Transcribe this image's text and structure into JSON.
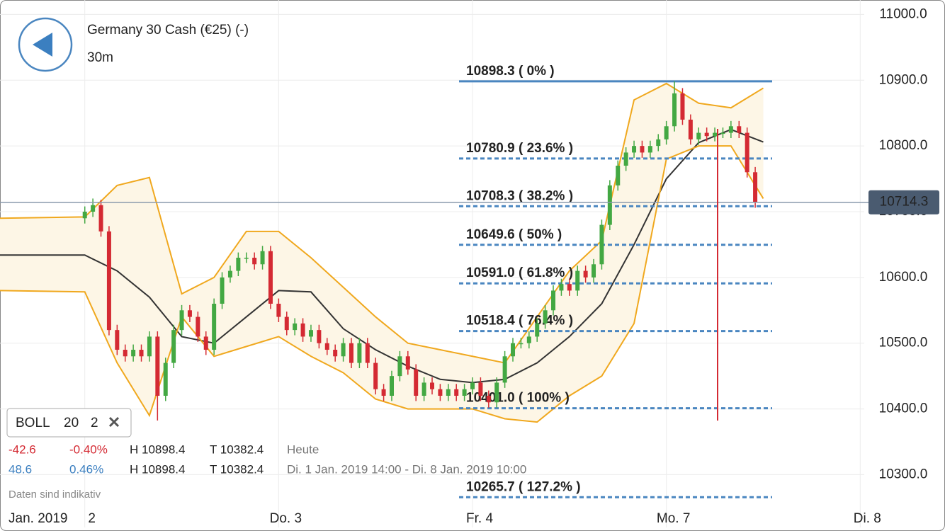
{
  "chart_data": {
    "type": "candlestick",
    "title": "Germany 30 Cash (€25) (-)",
    "subtitle": "30m",
    "x_period_label": "Jan. 2019",
    "xlim": [
      -10.5,
      96.5
    ],
    "xticks": [
      {
        "value": 0,
        "label": "2"
      },
      {
        "value": 24,
        "label": "Do. 3"
      },
      {
        "value": 48,
        "label": "Fr. 4"
      },
      {
        "value": 72,
        "label": "Mo. 7"
      },
      {
        "value": 96,
        "label": "Di. 8"
      }
    ],
    "ylim": [
      10252,
      11022
    ],
    "yticks": [
      {
        "value": 10300,
        "label": "10300.0"
      },
      {
        "value": 10400,
        "label": "10400.0"
      },
      {
        "value": 10500,
        "label": "10500.0"
      },
      {
        "value": 10600,
        "label": "10600.0"
      },
      {
        "value": 10700,
        "label": "10700.0"
      },
      {
        "value": 10800,
        "label": "10800.0"
      },
      {
        "value": 10900,
        "label": "10900.0"
      },
      {
        "value": 11000,
        "label": "11000.0"
      }
    ],
    "grid": true,
    "up_color": "#43a843",
    "down_color": "#d42a33",
    "x": [
      0,
      1,
      2,
      3,
      4,
      5,
      6,
      7,
      8,
      9,
      10,
      11,
      12,
      13,
      14,
      15,
      16,
      17,
      18,
      19,
      20,
      21,
      22,
      23,
      24,
      25,
      26,
      27,
      28,
      29,
      30,
      31,
      32,
      33,
      34,
      35,
      36,
      37,
      38,
      39,
      40,
      41,
      42,
      43,
      44,
      45,
      46,
      47,
      48,
      49,
      50,
      51,
      52,
      53,
      54,
      55,
      56,
      57,
      58,
      59,
      60,
      61,
      62,
      63,
      64,
      65,
      66,
      67,
      68,
      69,
      70,
      71,
      72,
      73,
      74,
      75,
      76,
      77,
      78,
      79,
      80,
      81,
      82,
      83
    ],
    "open": [
      10690,
      10700,
      10710,
      10670,
      10520,
      10490,
      10480,
      10490,
      10480,
      10510,
      10420,
      10470,
      10520,
      10550,
      10540,
      10510,
      10490,
      10560,
      10600,
      10610,
      10630,
      10630,
      10620,
      10640,
      10560,
      10540,
      10520,
      10530,
      10510,
      10520,
      10500,
      10490,
      10480,
      10500,
      10470,
      10500,
      10470,
      10430,
      10420,
      10450,
      10480,
      10460,
      10420,
      10440,
      10430,
      10420,
      10430,
      10420,
      10430,
      10440,
      10420,
      10410,
      10440,
      10480,
      10500,
      10500,
      10510,
      10530,
      10550,
      10580,
      10590,
      10580,
      10610,
      10600,
      10620,
      10680,
      10740,
      10770,
      10790,
      10800,
      10790,
      10800,
      10810,
      10830,
      10880,
      10840,
      10810,
      10820,
      10815,
      10820,
      10820,
      10830,
      10820,
      10760
    ],
    "high": [
      10708,
      10720,
      10718,
      10678,
      10528,
      10498,
      10498,
      10498,
      10518,
      10518,
      10478,
      10528,
      10558,
      10558,
      10548,
      10518,
      10568,
      10608,
      10618,
      10638,
      10638,
      10638,
      10648,
      10648,
      10568,
      10548,
      10538,
      10538,
      10528,
      10528,
      10508,
      10498,
      10508,
      10508,
      10508,
      10508,
      10478,
      10438,
      10458,
      10488,
      10488,
      10468,
      10448,
      10448,
      10438,
      10438,
      10438,
      10438,
      10448,
      10448,
      10428,
      10448,
      10488,
      10508,
      10508,
      10518,
      10538,
      10558,
      10588,
      10598,
      10598,
      10618,
      10618,
      10628,
      10688,
      10748,
      10778,
      10798,
      10808,
      10808,
      10808,
      10818,
      10838,
      10898.4,
      10888,
      10848,
      10828,
      10828,
      10828,
      10828,
      10838,
      10838,
      10828,
      10768
    ],
    "low": [
      10682,
      10692,
      10662,
      10512,
      10482,
      10472,
      10472,
      10472,
      10472,
      10382.4,
      10412,
      10462,
      10512,
      10532,
      10502,
      10482,
      10482,
      10552,
      10592,
      10602,
      10622,
      10612,
      10612,
      10552,
      10532,
      10512,
      10512,
      10502,
      10502,
      10492,
      10482,
      10472,
      10472,
      10462,
      10462,
      10462,
      10422,
      10412,
      10412,
      10442,
      10452,
      10412,
      10412,
      10422,
      10412,
      10412,
      10412,
      10412,
      10422,
      10412,
      10402,
      10402,
      10432,
      10472,
      10492,
      10492,
      10502,
      10522,
      10542,
      10572,
      10572,
      10572,
      10592,
      10592,
      10612,
      10672,
      10732,
      10762,
      10782,
      10782,
      10782,
      10792,
      10802,
      10822,
      10832,
      10802,
      10802,
      10807,
      10807,
      10812,
      10812,
      10812,
      10752,
      10706
    ],
    "close": [
      10700,
      10710,
      10670,
      10520,
      10490,
      10480,
      10490,
      10480,
      10510,
      10420,
      10470,
      10520,
      10550,
      10540,
      10510,
      10490,
      10560,
      10600,
      10610,
      10630,
      10630,
      10620,
      10640,
      10560,
      10540,
      10520,
      10530,
      10510,
      10520,
      10500,
      10490,
      10480,
      10500,
      10470,
      10500,
      10470,
      10430,
      10420,
      10450,
      10480,
      10460,
      10420,
      10440,
      10430,
      10420,
      10430,
      10420,
      10430,
      10440,
      10420,
      10410,
      10440,
      10480,
      10500,
      10500,
      10510,
      10530,
      10550,
      10580,
      10590,
      10580,
      10610,
      10600,
      10620,
      10680,
      10740,
      10770,
      10790,
      10800,
      10790,
      10800,
      10810,
      10830,
      10880,
      10840,
      10810,
      10820,
      10815,
      10820,
      10820,
      10830,
      10820,
      10760,
      10714.3
    ],
    "bands": {
      "x": [
        -10.5,
        0,
        4,
        8,
        12,
        16,
        20,
        24,
        28,
        32,
        36,
        40,
        44,
        48,
        52,
        56,
        60,
        64,
        68,
        72,
        76,
        80,
        84
      ],
      "fill": "#fdf6e6",
      "series": [
        {
          "role": "upper",
          "color": "#f0a81e",
          "values": [
            10690,
            10692,
            10740,
            10752,
            10575,
            10600,
            10670,
            10670,
            10630,
            10585,
            10540,
            10500,
            10490,
            10480,
            10470,
            10540,
            10610,
            10656,
            10870,
            10895,
            10865,
            10858,
            10888
          ]
        },
        {
          "role": "middle",
          "color": "#333333",
          "values": [
            10634,
            10634,
            10610,
            10570,
            10510,
            10500,
            10540,
            10580,
            10578,
            10522,
            10490,
            10465,
            10445,
            10440,
            10445,
            10470,
            10510,
            10560,
            10650,
            10750,
            10805,
            10825,
            10806
          ]
        },
        {
          "role": "lower",
          "color": "#f0a81e",
          "values": [
            10580,
            10578,
            10470,
            10390,
            10540,
            10480,
            10495,
            10510,
            10480,
            10455,
            10415,
            10400,
            10400,
            10400,
            10385,
            10380,
            10420,
            10450,
            10530,
            10780,
            10800,
            10800,
            10720
          ]
        }
      ]
    },
    "fib_color": "#4a86c0",
    "fib_levels": [
      {
        "value": 10898.3,
        "label": "10898.3 ( 0% )"
      },
      {
        "value": 10780.9,
        "label": "10780.9 ( 23.6% )"
      },
      {
        "value": 10708.3,
        "label": "10708.3 ( 38.2% )"
      },
      {
        "value": 10649.6,
        "label": "10649.6 ( 50% )"
      },
      {
        "value": 10591.0,
        "label": "10591.0 ( 61.8% )"
      },
      {
        "value": 10518.4,
        "label": "10518.4 ( 76.4% )"
      },
      {
        "value": 10401.0,
        "label": "10401.0 ( 100% )"
      },
      {
        "value": 10265.7,
        "label": "10265.7 ( 127.2% )"
      }
    ],
    "last_price": {
      "value": 10714.3,
      "label": "10714.3"
    },
    "indicator": {
      "name": "BOLL",
      "period": 20,
      "deviation": 2
    },
    "stats": [
      {
        "change": "-42.6",
        "change_pct": "-0.40%",
        "high": "H 10898.4",
        "low": "T 10382.4",
        "period": "Heute"
      },
      {
        "change": "48.6",
        "change_pct": "0.46%",
        "high": "H 10898.4",
        "low": "T 10382.4",
        "period": "Di. 1 Jan. 2019 14:00 - Di. 8 Jan. 2019 10:00"
      }
    ],
    "disclaimer": "Daten sind indikativ"
  }
}
